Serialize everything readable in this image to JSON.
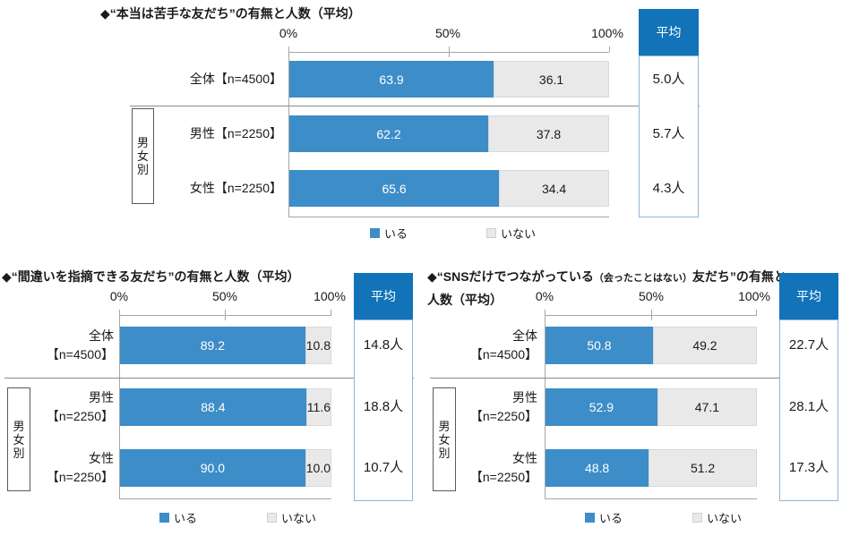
{
  "colors": {
    "bar_have": "#3d8dc8",
    "bar_not_have": "#e9e9e9",
    "avg_header_bg": "#1273b9",
    "avg_box_border": "#8fb6d9",
    "frame_line": "#a6a6a6",
    "separator_line": "#8c8c8c",
    "text": "#1a1a1a"
  },
  "chart_data": [
    {
      "type": "bar",
      "stacked": true,
      "orientation": "horizontal",
      "title": "◆“本当は苦手な友だち”の有無と人数（平均）",
      "categories": [
        "全体【n=4500】",
        "男性【n=2250】",
        "女性【n=2250】"
      ],
      "series": [
        {
          "name": "いる",
          "values": [
            63.9,
            62.2,
            65.6
          ]
        },
        {
          "name": "いない",
          "values": [
            36.1,
            37.8,
            34.4
          ]
        }
      ],
      "value_labels": {
        "have": [
          "63.9",
          "62.2",
          "65.6"
        ],
        "not_have": [
          "36.1",
          "37.8",
          "34.4"
        ]
      },
      "averages": [
        "5.0人",
        "5.7人",
        "4.3人"
      ],
      "avg_header": "平均",
      "group_label": "男女別",
      "group_label_chars": [
        "男",
        "女",
        "別"
      ],
      "x_ticks": [
        "0%",
        "50%",
        "100%"
      ],
      "xlim": [
        0,
        100
      ],
      "grid": false,
      "legend_position": "bottom",
      "legend": [
        "いる",
        "いない"
      ]
    },
    {
      "type": "bar",
      "stacked": true,
      "orientation": "horizontal",
      "title": "◆“間違いを指摘できる友だち”の有無と人数（平均）",
      "categories": [
        "全体【n=4500】",
        "男性【n=2250】",
        "女性【n=2250】"
      ],
      "category_line1": [
        "全体",
        "男性",
        "女性"
      ],
      "category_line2": [
        "【n=4500】",
        "【n=2250】",
        "【n=2250】"
      ],
      "series": [
        {
          "name": "いる",
          "values": [
            89.2,
            88.4,
            90.0
          ]
        },
        {
          "name": "いない",
          "values": [
            10.8,
            11.6,
            10.0
          ]
        }
      ],
      "value_labels": {
        "have": [
          "89.2",
          "88.4",
          "90.0"
        ],
        "not_have": [
          "10.8",
          "11.6",
          "10.0"
        ]
      },
      "averages": [
        "14.8人",
        "18.8人",
        "10.7人"
      ],
      "avg_header": "平均",
      "group_label": "男女別",
      "group_label_chars": [
        "男",
        "女",
        "別"
      ],
      "x_ticks": [
        "0%",
        "50%",
        "100%"
      ],
      "xlim": [
        0,
        100
      ],
      "grid": false,
      "legend_position": "bottom",
      "legend": [
        "いる",
        "いない"
      ]
    },
    {
      "type": "bar",
      "stacked": true,
      "orientation": "horizontal",
      "title": "◆“SNSだけでつながっている（会ったことはない）友だち”の有無と人数（平均）",
      "title_parts": {
        "line1_pre": "◆“SNSだけでつながっている",
        "line1_small": "（会ったことはない）",
        "line1_post": "友だち”の有無と",
        "line2": "人数（平均）"
      },
      "categories": [
        "全体【n=4500】",
        "男性【n=2250】",
        "女性【n=2250】"
      ],
      "category_line1": [
        "全体",
        "男性",
        "女性"
      ],
      "category_line2": [
        "【n=4500】",
        "【n=2250】",
        "【n=2250】"
      ],
      "series": [
        {
          "name": "いる",
          "values": [
            50.8,
            52.9,
            48.8
          ]
        },
        {
          "name": "いない",
          "values": [
            49.2,
            47.1,
            51.2
          ]
        }
      ],
      "value_labels": {
        "have": [
          "50.8",
          "52.9",
          "48.8"
        ],
        "not_have": [
          "49.2",
          "47.1",
          "51.2"
        ]
      },
      "averages": [
        "22.7人",
        "28.1人",
        "17.3人"
      ],
      "avg_header": "平均",
      "group_label": "男女別",
      "group_label_chars": [
        "男",
        "女",
        "別"
      ],
      "x_ticks": [
        "0%",
        "50%",
        "100%"
      ],
      "xlim": [
        0,
        100
      ],
      "grid": false,
      "legend_position": "bottom",
      "legend": [
        "いる",
        "いない"
      ]
    }
  ]
}
